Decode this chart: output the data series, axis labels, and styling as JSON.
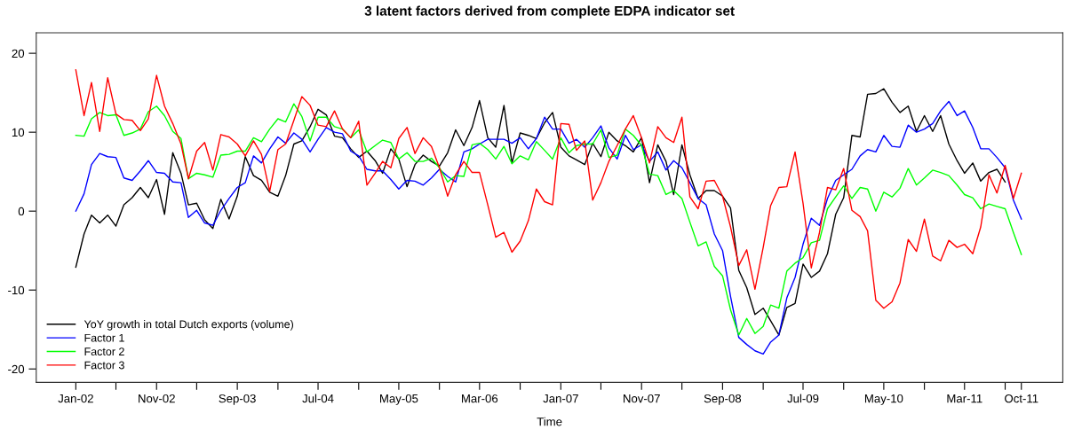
{
  "chart_data": {
    "type": "line",
    "title": "3 latent factors derived from complete EDPA indicator set",
    "xlabel": "Time",
    "x": [
      "2002-01",
      "2002-02",
      "2002-03",
      "2002-04",
      "2002-05",
      "2002-06",
      "2002-07",
      "2002-08",
      "2002-09",
      "2002-10",
      "2002-11",
      "2002-12",
      "2003-01",
      "2003-02",
      "2003-03",
      "2003-04",
      "2003-05",
      "2003-06",
      "2003-07",
      "2003-08",
      "2003-09",
      "2003-10",
      "2003-11",
      "2003-12",
      "2004-01",
      "2004-02",
      "2004-03",
      "2004-04",
      "2004-05",
      "2004-06",
      "2004-07",
      "2004-08",
      "2004-09",
      "2004-10",
      "2004-11",
      "2004-12",
      "2005-01",
      "2005-02",
      "2005-03",
      "2005-04",
      "2005-05",
      "2005-06",
      "2005-07",
      "2005-08",
      "2005-09",
      "2005-10",
      "2005-11",
      "2005-12",
      "2006-01",
      "2006-02",
      "2006-03",
      "2006-04",
      "2006-05",
      "2006-06",
      "2006-07",
      "2006-08",
      "2006-09",
      "2006-10",
      "2006-11",
      "2006-12",
      "2007-01",
      "2007-02",
      "2007-03",
      "2007-04",
      "2007-05",
      "2007-06",
      "2007-07",
      "2007-08",
      "2007-09",
      "2007-10",
      "2007-11",
      "2007-12",
      "2008-01",
      "2008-02",
      "2008-03",
      "2008-04",
      "2008-05",
      "2008-06",
      "2008-07",
      "2008-08",
      "2008-09",
      "2008-10",
      "2008-11",
      "2008-12",
      "2009-01",
      "2009-02",
      "2009-03",
      "2009-04",
      "2009-05",
      "2009-06",
      "2009-07",
      "2009-08",
      "2009-09",
      "2009-10",
      "2009-11",
      "2009-12",
      "2010-01",
      "2010-02",
      "2010-03",
      "2010-04",
      "2010-05",
      "2010-06",
      "2010-07",
      "2010-08",
      "2010-09",
      "2010-10",
      "2010-11",
      "2010-12",
      "2011-01",
      "2011-02",
      "2011-03",
      "2011-04",
      "2011-05",
      "2011-06",
      "2011-07",
      "2011-08",
      "2011-09",
      "2011-10"
    ],
    "series": [
      {
        "name": "YoY growth in total Dutch exports (volume)",
        "color": "#000000",
        "values": [
          -7.1,
          -2.9,
          -0.5,
          -1.5,
          -0.5,
          -1.9,
          0.8,
          1.7,
          3.0,
          1.7,
          4.0,
          -0.4,
          7.4,
          4.8,
          0.8,
          1.0,
          -1.1,
          -2.2,
          1.5,
          -1.0,
          1.9,
          6.9,
          4.5,
          3.9,
          2.4,
          1.9,
          4.5,
          8.5,
          8.9,
          10.7,
          12.9,
          12.2,
          9.5,
          9.3,
          7.9,
          6.8,
          7.6,
          6.4,
          4.8,
          7.9,
          6.6,
          3.1,
          5.9,
          7.1,
          6.3,
          5.7,
          7.4,
          10.3,
          8.3,
          10.6,
          14.0,
          9.3,
          8.1,
          13.4,
          6.1,
          9.9,
          9.6,
          9.2,
          11.2,
          12.5,
          8.1,
          7.0,
          6.5,
          5.9,
          8.6,
          6.9,
          10.0,
          8.9,
          8.3,
          7.5,
          9.3,
          3.6,
          8.4,
          6.3,
          2.1,
          8.4,
          4.6,
          1.6,
          2.6,
          2.6,
          1.9,
          0.4,
          -7.5,
          -9.7,
          -13.1,
          -12.3,
          -13.9,
          -15.7,
          -12.2,
          -11.7,
          -6.7,
          -8.4,
          -7.6,
          -5.4,
          -0.4,
          1.7,
          9.6,
          9.4,
          14.8,
          14.9,
          15.5,
          13.8,
          12.5,
          13.3,
          10.1,
          12.1,
          10.1,
          12.1,
          8.5,
          6.4,
          4.8,
          6.1,
          3.8,
          4.9,
          5.3,
          3.7,
          null,
          null
        ]
      },
      {
        "name": "Factor 1",
        "color": "#0000ff",
        "values": [
          0.0,
          2.2,
          5.9,
          7.3,
          6.9,
          6.8,
          4.2,
          3.9,
          5.1,
          6.4,
          4.9,
          4.8,
          3.7,
          3.6,
          -0.8,
          0.1,
          -1.5,
          -1.8,
          0.1,
          1.6,
          3.0,
          3.6,
          7.0,
          6.1,
          7.9,
          9.4,
          8.6,
          9.9,
          9.1,
          7.5,
          9.1,
          10.6,
          10.0,
          9.8,
          7.6,
          7.0,
          5.3,
          5.1,
          5.1,
          4.0,
          2.8,
          3.9,
          3.8,
          3.3,
          4.2,
          5.3,
          4.4,
          3.7,
          7.5,
          7.9,
          8.5,
          9.1,
          9.1,
          9.1,
          8.6,
          9.3,
          7.9,
          9.2,
          11.9,
          10.4,
          10.4,
          8.6,
          9.1,
          8.1,
          9.3,
          10.8,
          8.0,
          6.6,
          9.6,
          7.8,
          8.4,
          6.3,
          7.5,
          5.2,
          6.4,
          5.5,
          3.6,
          1.6,
          0.8,
          -2.9,
          -5.0,
          -10.8,
          -16.0,
          -16.9,
          -17.7,
          -18.1,
          -16.6,
          -15.7,
          -11.0,
          -8.4,
          -4.2,
          -0.9,
          -1.8,
          1.6,
          3.9,
          4.6,
          5.3,
          7.0,
          7.8,
          7.5,
          9.6,
          8.2,
          8.1,
          10.9,
          10.0,
          10.4,
          11.1,
          12.7,
          13.9,
          12.1,
          12.7,
          10.6,
          7.9,
          7.9,
          6.8,
          5.5,
          1.4,
          -1.0
        ]
      },
      {
        "name": "Factor 2",
        "color": "#00ff00",
        "values": [
          9.6,
          9.5,
          11.7,
          12.5,
          12.1,
          12.2,
          9.6,
          9.9,
          10.4,
          12.6,
          13.3,
          12.1,
          10.1,
          9.2,
          4.1,
          4.8,
          4.6,
          4.3,
          7.1,
          7.2,
          7.6,
          7.6,
          9.3,
          8.8,
          10.4,
          11.7,
          11.3,
          13.6,
          12.0,
          8.9,
          11.9,
          11.9,
          10.7,
          10.4,
          9.3,
          10.3,
          7.5,
          8.3,
          9.0,
          8.7,
          6.6,
          7.4,
          6.3,
          6.3,
          6.7,
          5.5,
          3.7,
          4.5,
          4.4,
          8.4,
          8.6,
          7.8,
          6.6,
          8.2,
          6.0,
          7.0,
          6.5,
          8.8,
          7.7,
          6.6,
          9.3,
          7.4,
          8.3,
          8.5,
          8.5,
          10.3,
          6.8,
          7.1,
          10.4,
          9.6,
          8.3,
          4.7,
          4.5,
          2.1,
          2.6,
          1.6,
          -1.4,
          -4.4,
          -3.9,
          -7.0,
          -8.2,
          -12.5,
          -15.7,
          -13.6,
          -15.5,
          -14.6,
          -11.9,
          -12.3,
          -7.6,
          -6.6,
          -5.9,
          -4.0,
          -3.7,
          0.3,
          1.8,
          3.2,
          1.6,
          3.0,
          2.8,
          0.0,
          2.4,
          1.8,
          2.9,
          5.4,
          3.3,
          4.2,
          5.2,
          4.9,
          4.5,
          3.3,
          2.1,
          1.7,
          0.3,
          0.9,
          0.6,
          0.3,
          -2.7,
          -5.5
        ]
      },
      {
        "name": "Factor 3",
        "color": "#ff0000",
        "values": [
          17.9,
          12.1,
          16.3,
          10.1,
          16.9,
          12.3,
          11.6,
          11.5,
          10.2,
          11.7,
          17.2,
          13.3,
          11.1,
          8.5,
          4.1,
          7.6,
          8.7,
          5.2,
          9.7,
          9.4,
          8.5,
          7.0,
          8.9,
          7.2,
          2.5,
          7.8,
          8.5,
          11.5,
          14.5,
          13.4,
          10.9,
          10.7,
          12.7,
          10.4,
          9.3,
          11.4,
          3.3,
          4.8,
          6.3,
          5.5,
          9.2,
          10.6,
          7.3,
          9.3,
          8.2,
          5.5,
          1.9,
          4.6,
          6.3,
          4.9,
          4.9,
          0.8,
          -3.3,
          -2.7,
          -5.2,
          -3.8,
          -1.2,
          2.8,
          1.2,
          0.8,
          11.1,
          11.0,
          7.7,
          8.9,
          1.4,
          3.6,
          6.3,
          8.3,
          10.4,
          12.1,
          9.3,
          6.1,
          10.7,
          9.3,
          8.7,
          11.9,
          1.8,
          0.3,
          3.8,
          3.9,
          1.9,
          -2.0,
          -6.9,
          -4.9,
          -9.9,
          -4.6,
          0.7,
          3.0,
          3.1,
          7.5,
          1.0,
          -7.2,
          -2.7,
          3.0,
          2.7,
          5.4,
          0.1,
          -0.7,
          -2.5,
          -11.3,
          -12.3,
          -11.5,
          -9.1,
          -3.6,
          -5.1,
          -1.0,
          -5.7,
          -6.3,
          -3.7,
          -4.6,
          -4.2,
          -5.4,
          -2.0,
          4.6,
          2.3,
          5.8,
          1.6,
          4.8
        ]
      }
    ],
    "xlim": [
      "2001-08-05",
      "2012-03-05"
    ],
    "xticks": [
      {
        "value": "2002-01",
        "label": "Jan-02"
      },
      {
        "value": "2002-06",
        "label": null
      },
      {
        "value": "2002-11",
        "label": "Nov-02"
      },
      {
        "value": "2003-04",
        "label": null
      },
      {
        "value": "2003-09",
        "label": "Sep-03"
      },
      {
        "value": "2004-02",
        "label": null
      },
      {
        "value": "2004-07",
        "label": "Jul-04"
      },
      {
        "value": "2004-12",
        "label": null
      },
      {
        "value": "2005-05",
        "label": "May-05"
      },
      {
        "value": "2005-10",
        "label": null
      },
      {
        "value": "2006-03",
        "label": "Mar-06"
      },
      {
        "value": "2006-08",
        "label": null
      },
      {
        "value": "2007-01",
        "label": "Jan-07"
      },
      {
        "value": "2007-06",
        "label": null
      },
      {
        "value": "2007-11",
        "label": "Nov-07"
      },
      {
        "value": "2008-04",
        "label": null
      },
      {
        "value": "2008-09",
        "label": "Sep-08"
      },
      {
        "value": "2009-02",
        "label": null
      },
      {
        "value": "2009-07",
        "label": "Jul-09"
      },
      {
        "value": "2009-12",
        "label": null
      },
      {
        "value": "2010-05",
        "label": "May-10"
      },
      {
        "value": "2010-10",
        "label": null
      },
      {
        "value": "2011-03",
        "label": "Mar-11"
      },
      {
        "value": "2011-08",
        "label": null
      },
      {
        "value": "2011-10",
        "label": "Oct-11"
      }
    ],
    "ylim": [
      -21.7,
      22.6
    ],
    "yticks": [
      -20,
      -10,
      0,
      10,
      20
    ],
    "grid": false,
    "legend": "bottom left",
    "line_style": "solid",
    "marker": "none"
  }
}
